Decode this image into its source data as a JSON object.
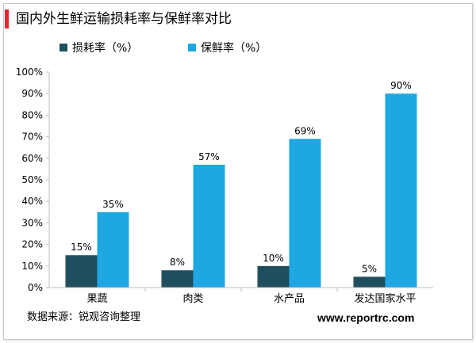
{
  "title": "国内外生鲜运输损耗率与保鲜率对比",
  "source": "数据来源：锐观咨询整理",
  "website": "www.reportrc.com",
  "colors": {
    "accent": "#e8242e",
    "loss": "#1f4e5f",
    "fresh": "#1fa7e1",
    "axis": "#bfbfbf"
  },
  "chart_data": {
    "type": "bar",
    "categories": [
      "果蔬",
      "肉类",
      "水产品",
      "发达国家水平"
    ],
    "series": [
      {
        "name": "损耗率（%）",
        "values": [
          15,
          8,
          10,
          5
        ],
        "labels": [
          "15%",
          "8%",
          "10%",
          "5%"
        ]
      },
      {
        "name": "保鲜率（%）",
        "values": [
          35,
          57,
          69,
          90
        ],
        "labels": [
          "35%",
          "57%",
          "69%",
          "90%"
        ]
      }
    ],
    "y_ticks": [
      0,
      10,
      20,
      30,
      40,
      50,
      60,
      70,
      80,
      90,
      100
    ],
    "y_tick_labels": [
      "0%",
      "10%",
      "20%",
      "30%",
      "40%",
      "50%",
      "60%",
      "70%",
      "80%",
      "90%",
      "100%"
    ],
    "ylim": [
      0,
      100
    ],
    "grid": false,
    "legend_position": "top-left"
  }
}
